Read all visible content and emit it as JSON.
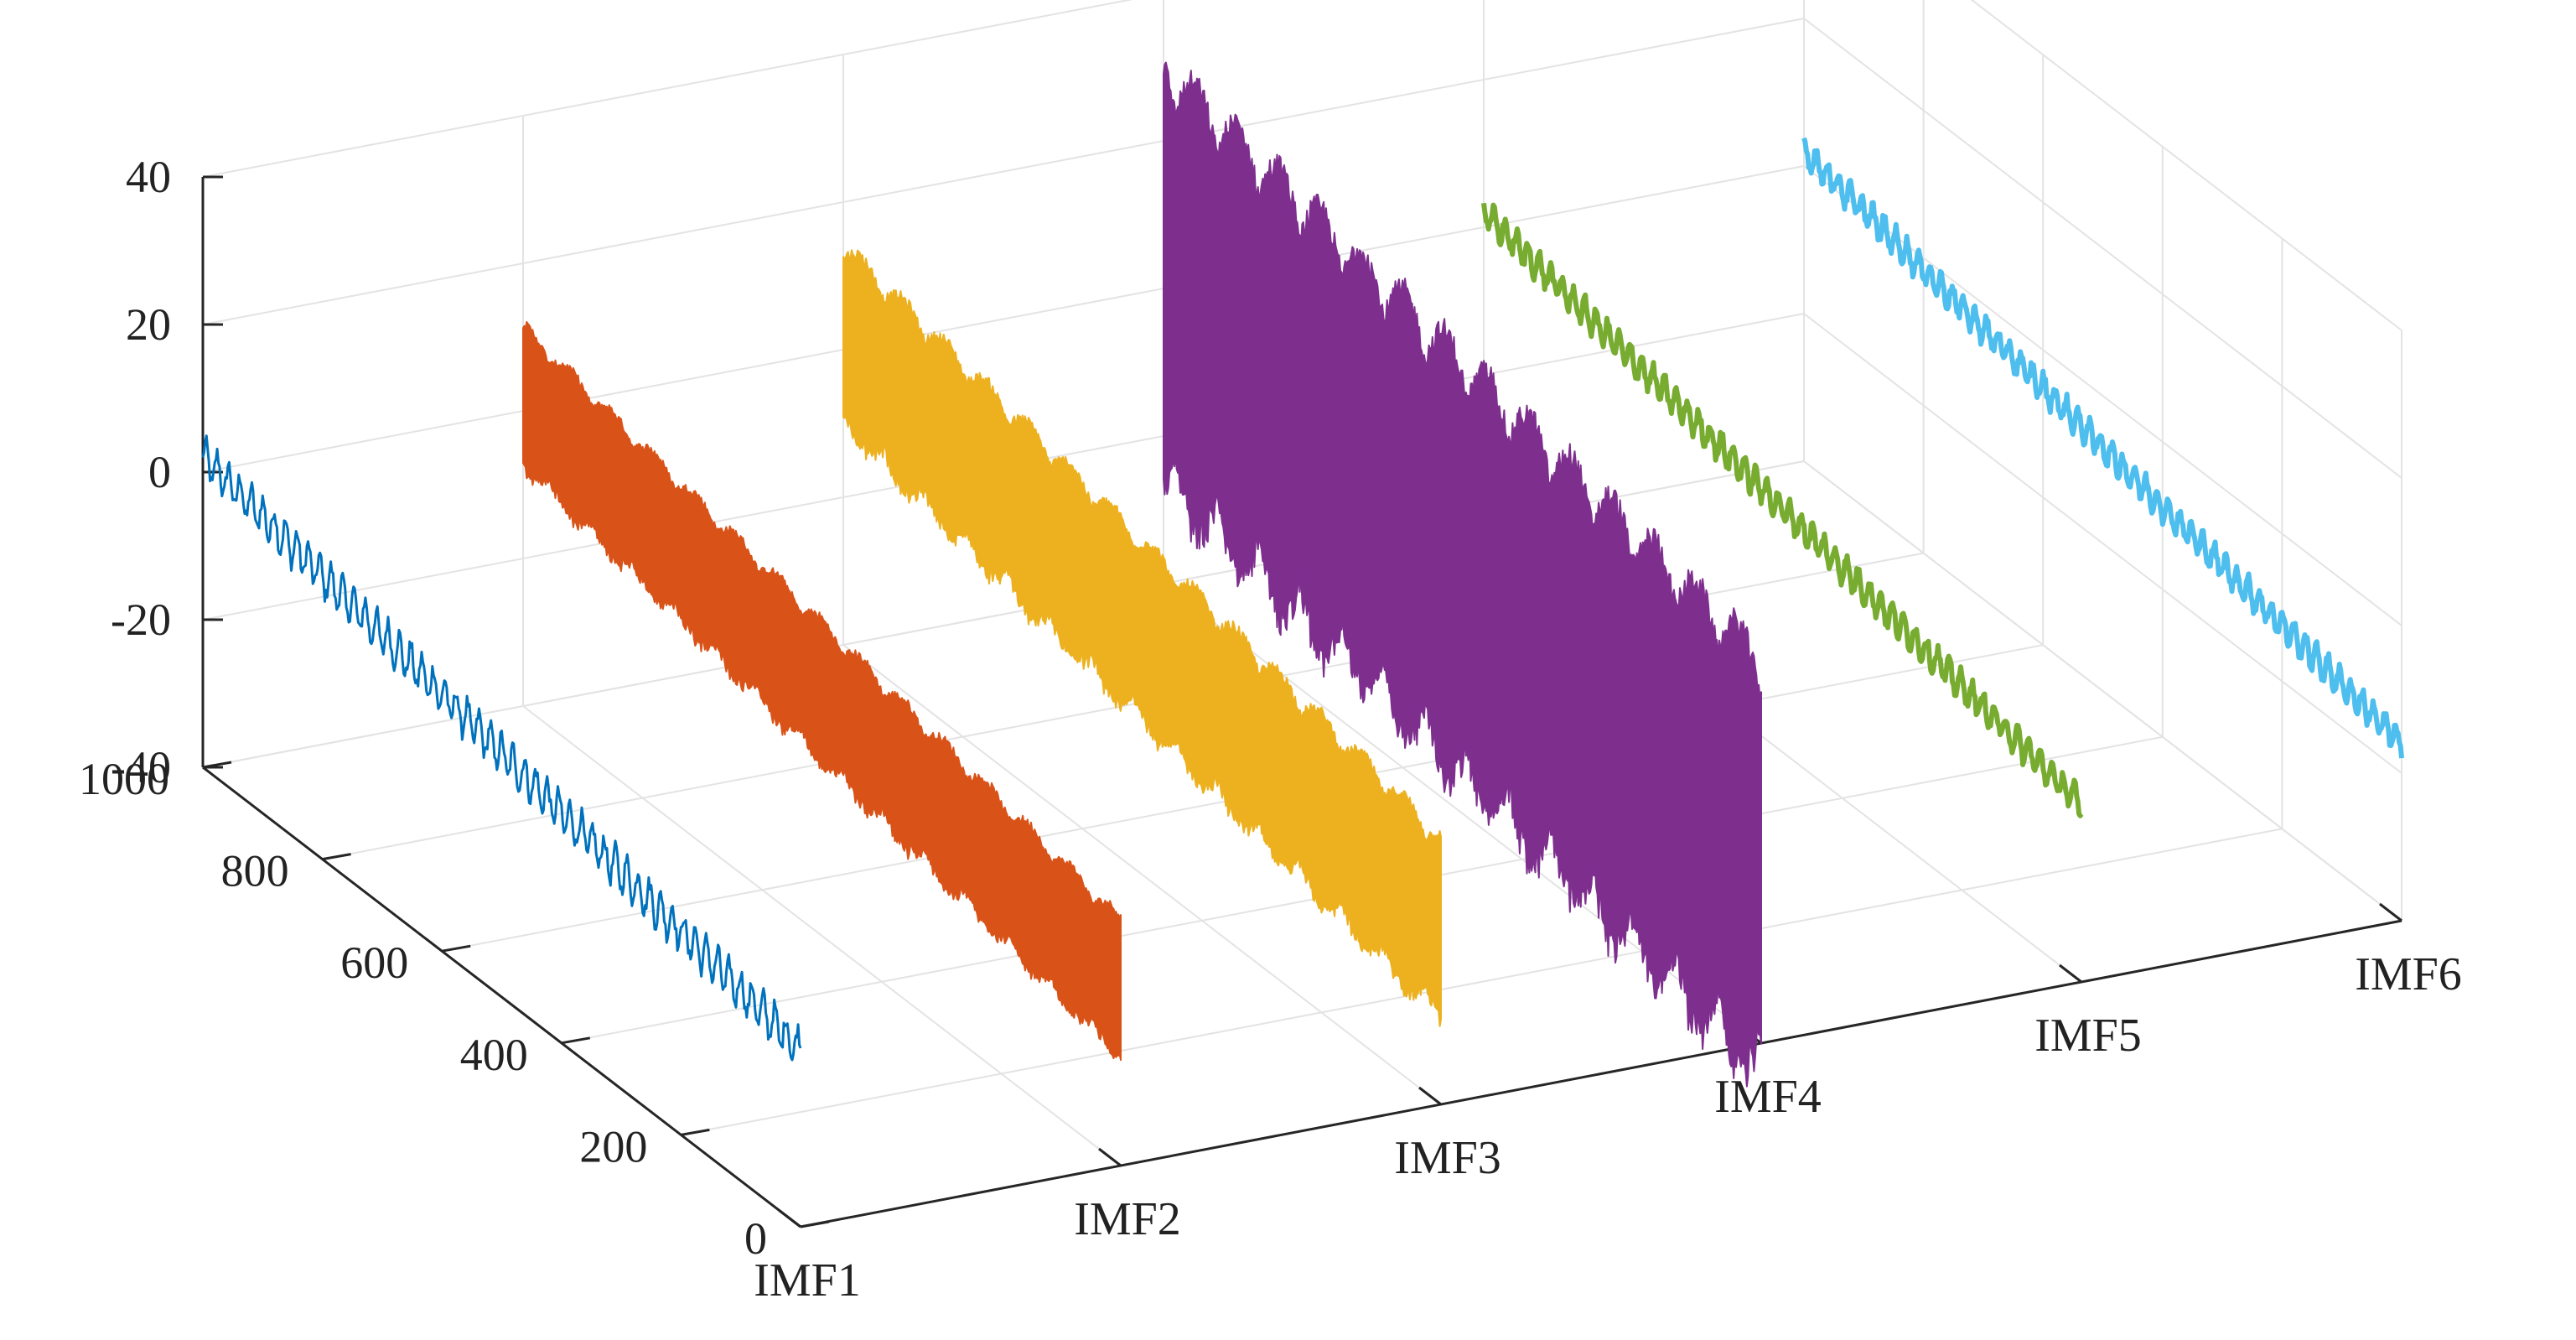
{
  "chart_data": {
    "type": "line",
    "subtype": "3d-waterfall",
    "title": "",
    "xlabel": "",
    "ylabel": "",
    "zlabel": "",
    "categories": [
      "IMF1",
      "IMF2",
      "IMF3",
      "IMF4",
      "IMF5",
      "IMF6"
    ],
    "sample_axis": {
      "range": [
        0,
        1000
      ],
      "ticks": [
        0,
        200,
        400,
        600,
        800,
        1000
      ]
    },
    "amplitude_axis": {
      "range": [
        -40,
        40
      ],
      "ticks": [
        -40,
        -20,
        0,
        20,
        40
      ]
    },
    "grid": true,
    "series": [
      {
        "name": "IMF1",
        "color": "#0072BD",
        "samples": 1000,
        "amplitude_range": [
          -4,
          4
        ],
        "peak_amplitude": 3.5,
        "filled": false
      },
      {
        "name": "IMF2",
        "color": "#D95319",
        "samples": 1000,
        "amplitude_range": [
          -12,
          12
        ],
        "peak_amplitude": 10,
        "filled": true
      },
      {
        "name": "IMF3",
        "color": "#EDB120",
        "samples": 1000,
        "amplitude_range": [
          -15,
          15
        ],
        "peak_amplitude": 13,
        "filled": true
      },
      {
        "name": "IMF4",
        "color": "#7E2F8E",
        "samples": 1000,
        "amplitude_range": [
          -34,
          34
        ],
        "peak_amplitude": 30,
        "filled": true
      },
      {
        "name": "IMF5",
        "color": "#77AC30",
        "samples": 1000,
        "amplitude_range": [
          -3,
          3
        ],
        "peak_amplitude": 2.5,
        "filled": false
      },
      {
        "name": "IMF6",
        "color": "#4DBEEE",
        "samples": 1000,
        "amplitude_range": [
          -3,
          3
        ],
        "peak_amplitude": 2.5,
        "filled": false
      }
    ]
  }
}
